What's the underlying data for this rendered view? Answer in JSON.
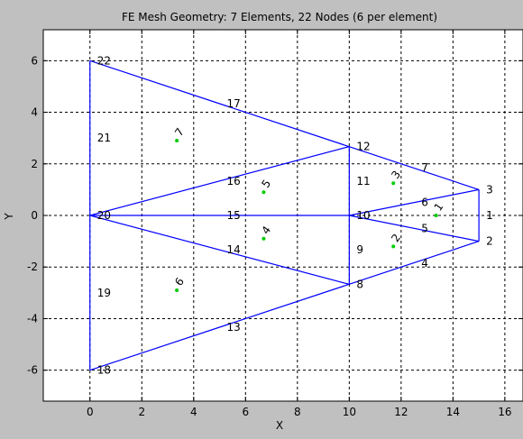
{
  "chart_data": {
    "type": "mesh",
    "title": "FE Mesh Geometry: 7 Elements, 22 Nodes (6 per element)",
    "xlabel": "X",
    "ylabel": "Y",
    "xlim": [
      -1.8,
      16.7
    ],
    "ylim": [
      -7.2,
      7.2
    ],
    "xticks": [
      "0",
      "2",
      "4",
      "6",
      "8",
      "10",
      "12",
      "14",
      "16"
    ],
    "yticks": [
      "-6",
      "-4",
      "-2",
      "0",
      "2",
      "4",
      "6"
    ],
    "grid": true,
    "colors": {
      "mesh": "#0000ff",
      "centroid": "#00cc00",
      "background": "#ffffff",
      "figure": "#c0c0c0"
    },
    "nodes": [
      {
        "id": "1",
        "x": 15.0,
        "y": 0.0
      },
      {
        "id": "2",
        "x": 15.0,
        "y": -1.0
      },
      {
        "id": "3",
        "x": 15.0,
        "y": 1.0
      },
      {
        "id": "4",
        "x": 12.5,
        "y": -1.85
      },
      {
        "id": "5",
        "x": 12.5,
        "y": -0.5
      },
      {
        "id": "6",
        "x": 12.5,
        "y": 0.5
      },
      {
        "id": "7",
        "x": 12.5,
        "y": 1.85
      },
      {
        "id": "8",
        "x": 10.0,
        "y": -2.67
      },
      {
        "id": "9",
        "x": 10.0,
        "y": -1.33
      },
      {
        "id": "10",
        "x": 10.0,
        "y": 0.0
      },
      {
        "id": "11",
        "x": 10.0,
        "y": 1.33
      },
      {
        "id": "12",
        "x": 10.0,
        "y": 2.67
      },
      {
        "id": "13",
        "x": 5.0,
        "y": -4.33
      },
      {
        "id": "14",
        "x": 5.0,
        "y": -1.33
      },
      {
        "id": "15",
        "x": 5.0,
        "y": 0.0
      },
      {
        "id": "16",
        "x": 5.0,
        "y": 1.33
      },
      {
        "id": "17",
        "x": 5.0,
        "y": 4.33
      },
      {
        "id": "18",
        "x": 0.0,
        "y": -6.0
      },
      {
        "id": "19",
        "x": 0.0,
        "y": -3.0
      },
      {
        "id": "20",
        "x": 0.0,
        "y": 0.0
      },
      {
        "id": "21",
        "x": 0.0,
        "y": 3.0
      },
      {
        "id": "22",
        "x": 0.0,
        "y": 6.0
      }
    ],
    "mesh_segments": [
      [
        [
          0,
          6
        ],
        [
          15,
          1
        ]
      ],
      [
        [
          0,
          -6
        ],
        [
          15,
          -1
        ]
      ],
      [
        [
          0,
          6
        ],
        [
          0,
          -6
        ]
      ],
      [
        [
          15,
          1
        ],
        [
          15,
          -1
        ]
      ],
      [
        [
          10,
          2.67
        ],
        [
          10,
          -2.67
        ]
      ],
      [
        [
          0,
          0
        ],
        [
          10,
          2.67
        ]
      ],
      [
        [
          0,
          0
        ],
        [
          10,
          -2.67
        ]
      ],
      [
        [
          0,
          0
        ],
        [
          10,
          0
        ]
      ],
      [
        [
          10,
          0
        ],
        [
          15,
          1
        ]
      ],
      [
        [
          10,
          0
        ],
        [
          15,
          -1
        ]
      ]
    ],
    "elements": [
      {
        "id": "1",
        "x": 13.35,
        "y": 0.0
      },
      {
        "id": "2",
        "x": 11.7,
        "y": -1.2
      },
      {
        "id": "3",
        "x": 11.7,
        "y": 1.25
      },
      {
        "id": "4",
        "x": 6.7,
        "y": -0.9
      },
      {
        "id": "5",
        "x": 6.7,
        "y": 0.9
      },
      {
        "id": "6",
        "x": 3.35,
        "y": -2.9
      },
      {
        "id": "7",
        "x": 3.35,
        "y": 2.9
      }
    ]
  }
}
